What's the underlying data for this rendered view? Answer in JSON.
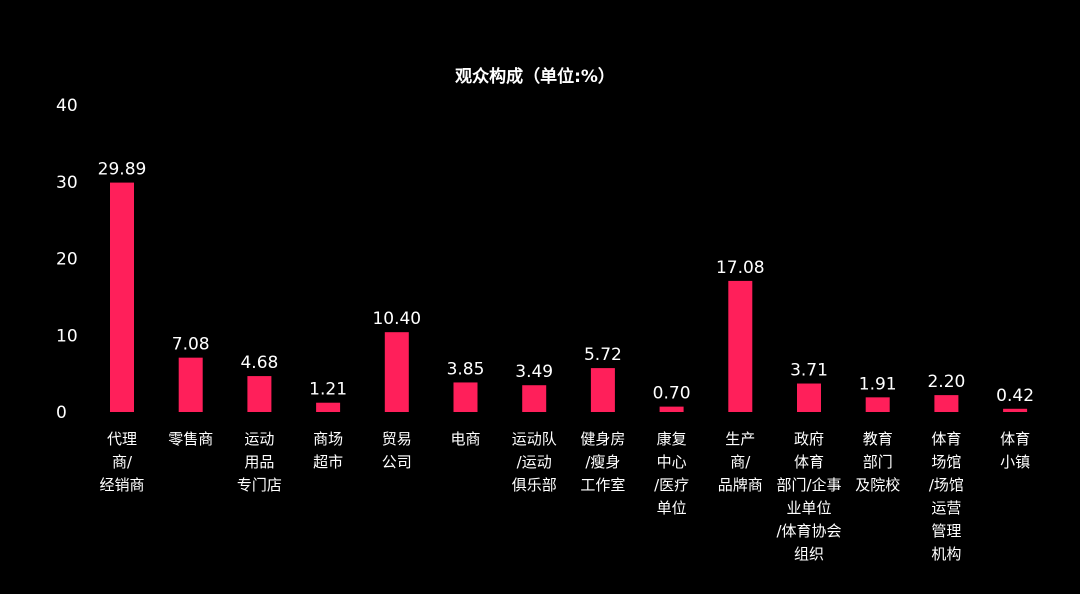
{
  "chart_data": {
    "type": "bar",
    "title": "观众构成（单位:%）",
    "xlabel": "",
    "ylabel": "",
    "ylim": [
      0,
      40
    ],
    "yticks": [
      "0",
      "10",
      "20",
      "30",
      "40"
    ],
    "grid": false,
    "bar_color": "#ff1f5a",
    "categories": [
      "代理商/经销商",
      "零售商",
      "运动用品专门店",
      "商场超市",
      "贸易公司",
      "电商",
      "运动队/运动俱乐部",
      "健身房/瘦身工作室",
      "康复中心/医疗单位",
      "生产商/品牌商",
      "政府体育部门/企事业单位/体育协会组织",
      "教育部门及院校",
      "体育场馆/场馆运营管理机构",
      "体育小镇"
    ],
    "category_lines": [
      [
        "代理",
        "商/",
        "经销商"
      ],
      [
        "零售商"
      ],
      [
        "运动",
        "用品",
        "专门店"
      ],
      [
        "商场",
        "超市"
      ],
      [
        "贸易",
        "公司"
      ],
      [
        "电商"
      ],
      [
        "运动队",
        "/运动",
        "俱乐部"
      ],
      [
        "健身房",
        "/瘦身",
        "工作室"
      ],
      [
        "康复",
        "中心",
        "/医疗",
        "单位"
      ],
      [
        "生产",
        "商/",
        "品牌商"
      ],
      [
        "政府",
        "体育",
        "部门/企事",
        "业单位",
        "/体育协会",
        "组织"
      ],
      [
        "教育",
        "部门",
        "及院校"
      ],
      [
        "体育",
        "场馆",
        "/场馆",
        "运营",
        "管理",
        "机构"
      ],
      [
        "体育",
        "小镇"
      ]
    ],
    "values": [
      29.89,
      7.08,
      4.68,
      1.21,
      10.4,
      3.85,
      3.49,
      5.72,
      0.7,
      17.08,
      3.71,
      1.91,
      2.2,
      0.42
    ],
    "value_labels": [
      "29.89",
      "7.08",
      "4.68",
      "1.21",
      "10.40",
      "3.85",
      "3.49",
      "5.72",
      "0.70",
      "17.08",
      "3.71",
      "1.91",
      "2.20",
      "0.42"
    ]
  }
}
